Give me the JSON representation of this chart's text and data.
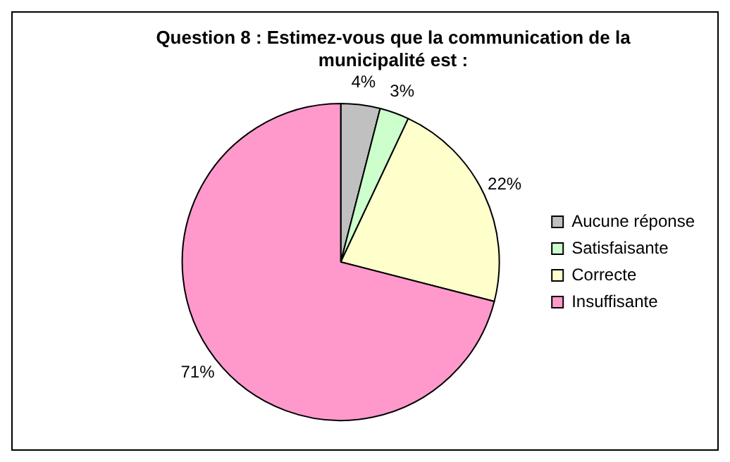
{
  "chart_data": {
    "type": "pie",
    "title": "Question 8 : Estimez-vous que la communication de la municipalité est :",
    "categories": [
      "Aucune réponse",
      "Satisfaisante",
      "Correcte",
      "Insuffisante"
    ],
    "values": [
      4,
      3,
      22,
      71
    ],
    "colors": [
      "#c0c0c0",
      "#ccffcc",
      "#ffffcc",
      "#ff99cc"
    ],
    "value_labels": [
      "4%",
      "3%",
      "22%",
      "71%"
    ],
    "legend": "right"
  }
}
